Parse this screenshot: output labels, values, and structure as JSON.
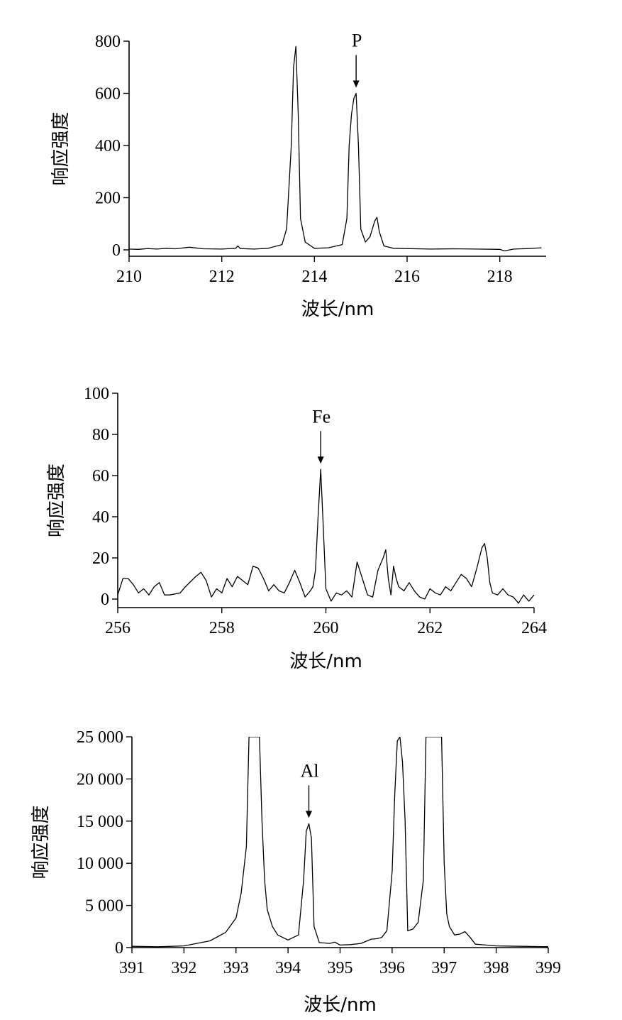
{
  "chart_data": [
    {
      "type": "line",
      "xlabel": "波长/nm",
      "ylabel": "响应强度",
      "xlim": [
        210,
        219
      ],
      "ylim": [
        0,
        800
      ],
      "x_ticks": [
        210,
        212,
        214,
        216,
        218
      ],
      "x_tick_labels": [
        "210",
        "212",
        "214",
        "216",
        "218"
      ],
      "y_ticks": [
        0,
        200,
        400,
        600,
        800
      ],
      "y_tick_labels": [
        "0",
        "200",
        "400",
        "600",
        "800"
      ],
      "annotation": {
        "label": "P",
        "x": 214.9,
        "y": 600
      },
      "series": [
        {
          "x": [
            210.0,
            210.2,
            210.4,
            210.6,
            210.8,
            211.0,
            211.3,
            211.6,
            212.0,
            212.3,
            212.35,
            212.4,
            212.7,
            213.0,
            213.3,
            213.4,
            213.5,
            213.55,
            213.6,
            213.65,
            213.7,
            213.8,
            214.0,
            214.3,
            214.6,
            214.7,
            214.75,
            214.8,
            214.85,
            214.9,
            214.95,
            215.0,
            215.1,
            215.2,
            215.3,
            215.35,
            215.4,
            215.5,
            215.7,
            216.0,
            216.5,
            217.0,
            217.5,
            218.0,
            218.1,
            218.3,
            218.6,
            218.9
          ],
          "y": [
            3,
            2,
            5,
            3,
            6,
            4,
            10,
            4,
            3,
            6,
            15,
            5,
            3,
            6,
            20,
            80,
            400,
            700,
            780,
            520,
            120,
            30,
            6,
            8,
            20,
            120,
            400,
            520,
            580,
            600,
            400,
            80,
            30,
            50,
            110,
            125,
            70,
            15,
            6,
            5,
            3,
            4,
            3,
            2,
            -4,
            3,
            5,
            8
          ]
        }
      ]
    },
    {
      "type": "line",
      "xlabel": "波长/nm",
      "ylabel": "响应强度",
      "xlim": [
        256,
        264
      ],
      "ylim": [
        0,
        100
      ],
      "x_ticks": [
        256,
        258,
        260,
        262,
        264
      ],
      "x_tick_labels": [
        "256",
        "258",
        "260",
        "262",
        "264"
      ],
      "y_ticks": [
        0,
        20,
        40,
        60,
        80,
        100
      ],
      "y_tick_labels": [
        "0",
        "20",
        "40",
        "60",
        "80",
        "100"
      ],
      "annotation": {
        "label": "Fe",
        "x": 259.9,
        "y": 63
      },
      "series": [
        {
          "x": [
            256.0,
            256.1,
            256.2,
            256.3,
            256.4,
            256.5,
            256.6,
            256.7,
            256.8,
            256.9,
            257.0,
            257.2,
            257.3,
            257.5,
            257.6,
            257.7,
            257.8,
            257.9,
            258.0,
            258.1,
            258.2,
            258.3,
            258.4,
            258.5,
            258.6,
            258.7,
            258.8,
            258.9,
            259.0,
            259.1,
            259.2,
            259.3,
            259.4,
            259.5,
            259.6,
            259.7,
            259.75,
            259.8,
            259.85,
            259.9,
            259.95,
            260.0,
            260.1,
            260.2,
            260.3,
            260.4,
            260.5,
            260.6,
            260.7,
            260.8,
            260.9,
            261.0,
            261.1,
            261.15,
            261.2,
            261.25,
            261.3,
            261.35,
            261.4,
            261.5,
            261.6,
            261.7,
            261.8,
            261.9,
            262.0,
            262.1,
            262.2,
            262.3,
            262.4,
            262.5,
            262.6,
            262.7,
            262.8,
            262.9,
            263.0,
            263.05,
            263.1,
            263.15,
            263.2,
            263.3,
            263.4,
            263.5,
            263.6,
            263.7,
            263.8,
            263.9,
            264.0
          ],
          "y": [
            2,
            10,
            10,
            7,
            3,
            5,
            2,
            6,
            8,
            2,
            2,
            3,
            6,
            11,
            13,
            9,
            1,
            5,
            3,
            10,
            6,
            11,
            9,
            7,
            16,
            15,
            10,
            4,
            7,
            4,
            3,
            8,
            14,
            8,
            1,
            4,
            6,
            14,
            40,
            63,
            35,
            5,
            -1,
            3,
            2,
            4,
            1,
            18,
            10,
            2,
            1,
            14,
            20,
            24,
            10,
            2,
            16,
            10,
            6,
            4,
            8,
            4,
            1,
            0,
            5,
            3,
            2,
            6,
            4,
            8,
            12,
            10,
            6,
            15,
            25,
            27,
            20,
            8,
            3,
            2,
            5,
            2,
            1,
            -2,
            2,
            -1,
            2
          ]
        }
      ]
    },
    {
      "type": "line",
      "xlabel": "波长/nm",
      "ylabel": "响应强度",
      "xlim": [
        391,
        399
      ],
      "ylim": [
        0,
        25000
      ],
      "x_ticks": [
        391,
        392,
        393,
        394,
        395,
        396,
        397,
        398,
        399
      ],
      "x_tick_labels": [
        "391",
        "392",
        "393",
        "394",
        "395",
        "396",
        "397",
        "398",
        "399"
      ],
      "y_ticks": [
        0,
        5000,
        10000,
        15000,
        20000,
        25000
      ],
      "y_tick_labels": [
        "0",
        "5 000",
        "10 000",
        "15 000",
        "20 000",
        "25 000"
      ],
      "annotation": {
        "label": "Al",
        "x": 394.4,
        "y": 14700
      },
      "series": [
        {
          "x": [
            391.0,
            391.5,
            392.0,
            392.5,
            392.8,
            393.0,
            393.1,
            393.2,
            393.25,
            393.45,
            393.5,
            393.55,
            393.6,
            393.7,
            393.8,
            394.0,
            394.2,
            394.3,
            394.35,
            394.4,
            394.45,
            394.5,
            394.6,
            394.8,
            394.9,
            395.0,
            395.2,
            395.4,
            395.6,
            395.7,
            395.8,
            395.9,
            396.0,
            396.05,
            396.1,
            396.15,
            396.2,
            396.25,
            396.3,
            396.4,
            396.5,
            396.6,
            396.65,
            396.95,
            397.0,
            397.05,
            397.1,
            397.2,
            397.3,
            397.4,
            397.5,
            397.6,
            397.8,
            398.0,
            398.5,
            399.0
          ],
          "y": [
            150,
            100,
            200,
            800,
            1800,
            3500,
            6500,
            12000,
            25000,
            25000,
            15000,
            8000,
            4500,
            2500,
            1500,
            900,
            1500,
            8000,
            13800,
            14700,
            13000,
            2500,
            600,
            500,
            650,
            300,
            350,
            500,
            1000,
            1050,
            1200,
            2000,
            9000,
            18000,
            24500,
            25000,
            22000,
            15000,
            2000,
            2200,
            3000,
            8000,
            25000,
            25000,
            10000,
            4000,
            2500,
            1500,
            1600,
            1900,
            1200,
            400,
            300,
            200,
            150,
            100
          ]
        }
      ]
    }
  ]
}
